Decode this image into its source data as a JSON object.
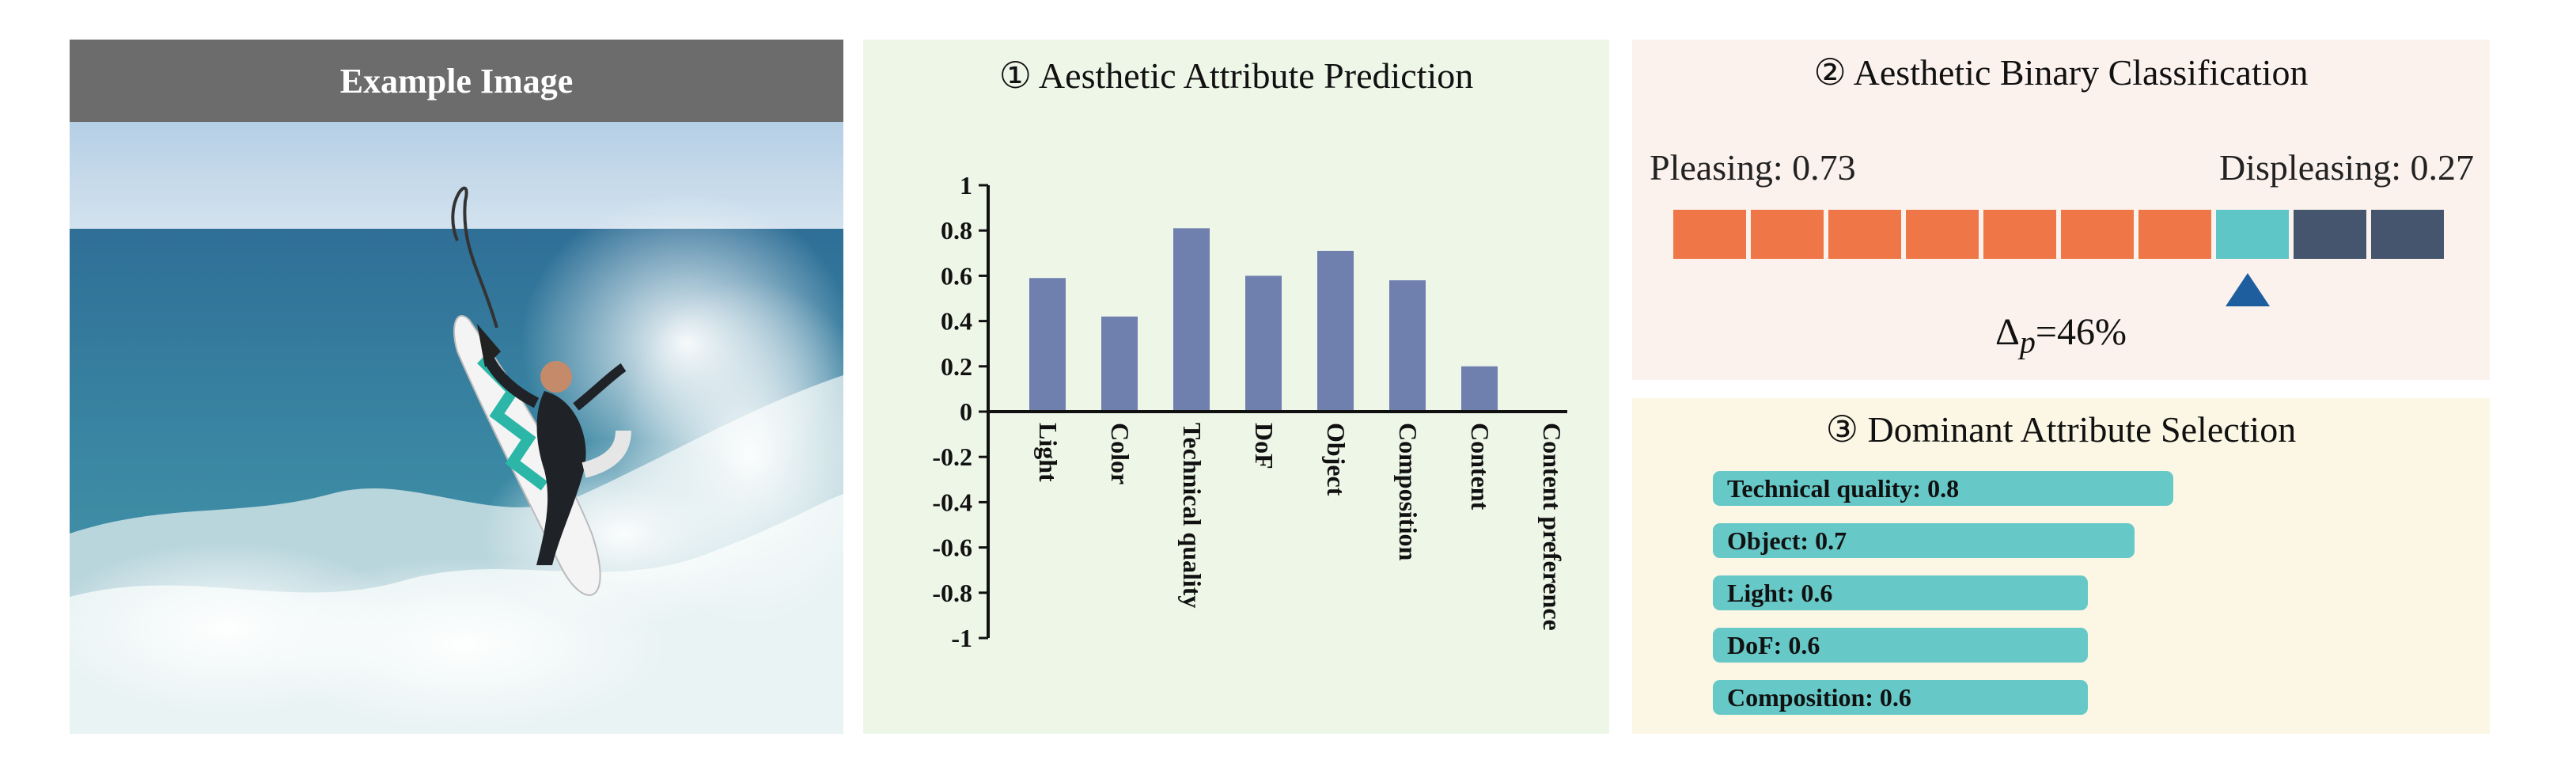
{
  "example_image": {
    "title": "Example Image"
  },
  "panel1": {
    "title": "① Aesthetic Attribute Prediction",
    "chart_data": {
      "type": "bar",
      "categories": [
        "Light",
        "Color",
        "Technical quality",
        "DoF",
        "Object",
        "Composition",
        "Content",
        "Content preference"
      ],
      "values": [
        0.59,
        0.42,
        0.81,
        0.6,
        0.71,
        0.58,
        0.2,
        0.0
      ],
      "ylim": [
        -1,
        1
      ],
      "yticks": [
        "1",
        "0.8",
        "0.6",
        "0.4",
        "0.2",
        "0",
        "-0.2",
        "-0.4",
        "-0.6",
        "-0.8",
        "-1"
      ],
      "title": "",
      "xlabel": "",
      "ylabel": "",
      "bar_color": "#6f7fae"
    }
  },
  "panel2": {
    "title": "② Aesthetic Binary Classification",
    "pleasing_label": "Pleasing: 0.73",
    "displeasing_label": "Displeasing: 0.27",
    "pleasing_score": 0.73,
    "displeasing_score": 0.27,
    "segments": [
      "pleasing",
      "pleasing",
      "pleasing",
      "pleasing",
      "pleasing",
      "pleasing",
      "pleasing",
      "marker",
      "displeasing",
      "displeasing"
    ],
    "colors": {
      "pleasing": "#ef7646",
      "marker": "#5ec6c7",
      "displeasing": "#46556e",
      "pointer": "#1e5e9e"
    },
    "delta_symbol": "Δ",
    "delta_subscript": "p",
    "delta_value": "=46%"
  },
  "panel3": {
    "title": "③ Dominant Attribute Selection",
    "items": [
      {
        "label": "Technical quality: 0.8",
        "value": 0.8
      },
      {
        "label": "Object: 0.7",
        "value": 0.7
      },
      {
        "label": "Light: 0.6",
        "value": 0.6
      },
      {
        "label": "DoF: 0.6",
        "value": 0.6
      },
      {
        "label": "Composition: 0.6",
        "value": 0.6
      }
    ],
    "bar_color": "#66c8c7"
  }
}
